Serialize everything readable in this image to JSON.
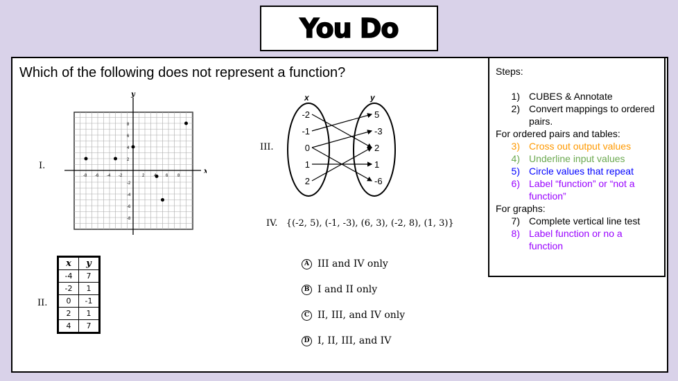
{
  "title": "You Do",
  "question": "Which of the following does not represent a function?",
  "graph_I": {
    "label": "I.",
    "x_axis_label": "x",
    "y_axis_label": "y",
    "x_ticks": [
      "-8",
      "-6",
      "-4",
      "-2",
      "2",
      "4",
      "6",
      "8"
    ],
    "y_ticks": [
      "8",
      "6",
      "4",
      "2",
      "-2",
      "-4",
      "-6",
      "-8"
    ],
    "points": [
      [
        -8,
        2
      ],
      [
        -3,
        2
      ],
      [
        0,
        4
      ],
      [
        4,
        -1
      ],
      [
        5,
        -5
      ],
      [
        9,
        8
      ]
    ]
  },
  "table_II": {
    "label": "II.",
    "headers": [
      "x",
      "y"
    ],
    "rows": [
      [
        "-4",
        "7"
      ],
      [
        "-2",
        "1"
      ],
      [
        "0",
        "-1"
      ],
      [
        "2",
        "1"
      ],
      [
        "4",
        "7"
      ]
    ]
  },
  "mapping_III": {
    "label": "III.",
    "domain_label": "x",
    "range_label": "y",
    "domain": [
      "-2",
      "-1",
      "0",
      "1",
      "2"
    ],
    "range": [
      "5",
      "-3",
      "2",
      "1",
      "-6"
    ],
    "arrows": [
      [
        "-2",
        "2"
      ],
      [
        "-1",
        "5"
      ],
      [
        "0",
        "-3"
      ],
      [
        "0",
        "-6"
      ],
      [
        "1",
        "1"
      ],
      [
        "2",
        "2"
      ]
    ]
  },
  "set_IV": {
    "label": "IV.",
    "text": "{(-2, 5), (-1, -3), (6, 3), (-2, 8), (1, 3)}"
  },
  "choices": [
    {
      "letter": "A",
      "text": "III and IV only"
    },
    {
      "letter": "B",
      "text": "I and II only"
    },
    {
      "letter": "C",
      "text": "II, III, and IV only"
    },
    {
      "letter": "D",
      "text": "I, II, III, and IV"
    }
  ],
  "steps": {
    "heading": "Steps:",
    "items": [
      {
        "num": "1)",
        "text": "CUBES & Annotate",
        "color": "#000000"
      },
      {
        "num": "2)",
        "text": "Convert mappings to ordered pairs.",
        "color": "#000000"
      },
      {
        "section": "For ordered pairs and tables:"
      },
      {
        "num": "3)",
        "text": "Cross out output values",
        "color": "#ff9900"
      },
      {
        "num": "4)",
        "text": "Underline input values",
        "color": "#6aa84f"
      },
      {
        "num": "5)",
        "text": "Circle values that repeat",
        "color": "#0000ff"
      },
      {
        "num": "6)",
        "text": "Label “function” or “not a function”",
        "color": "#9900ff"
      },
      {
        "section": "For graphs:"
      },
      {
        "num": "7)",
        "text": "Complete vertical line test",
        "color": "#000000"
      },
      {
        "num": "8)",
        "text": "Label function or no a function",
        "color": "#9900ff"
      }
    ]
  },
  "colors": {
    "background": "#d9d2e9"
  }
}
